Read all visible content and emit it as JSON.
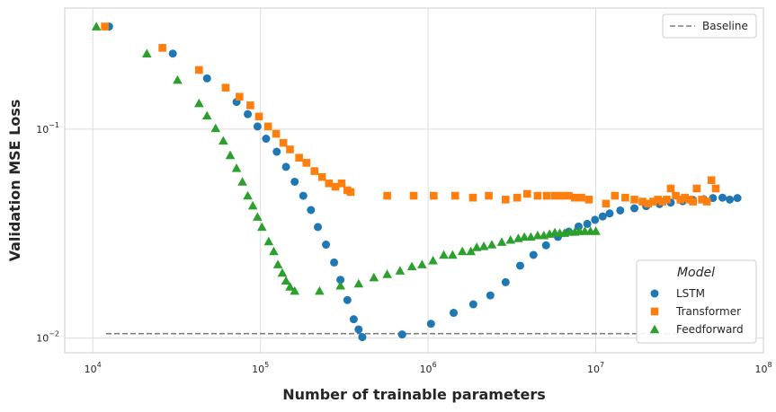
{
  "chart_data": {
    "type": "scatter",
    "title": "",
    "xlabel": "Number of trainable parameters",
    "ylabel": "Validation MSE Loss",
    "xscale": "log",
    "yscale": "log",
    "xlim": [
      6800,
      100000000
    ],
    "ylim": [
      0.0085,
      0.38
    ],
    "x_ticks": [
      {
        "value": 10000,
        "base": "10",
        "exp": "4"
      },
      {
        "value": 100000,
        "base": "10",
        "exp": "5"
      },
      {
        "value": 1000000,
        "base": "10",
        "exp": "6"
      },
      {
        "value": 10000000,
        "base": "10",
        "exp": "7"
      },
      {
        "value": 100000000,
        "base": "10",
        "exp": "8"
      }
    ],
    "y_ticks": [
      {
        "value": 0.01,
        "base": "10",
        "exp": "−2"
      },
      {
        "value": 0.1,
        "base": "10",
        "exp": "−1"
      }
    ],
    "grid": true,
    "legend_title": "Model",
    "legend_position": "bottom-right",
    "baseline": {
      "name": "Baseline",
      "y": 0.0105,
      "x_range": [
        12000,
        50000000
      ],
      "color": "#7f7f7f",
      "legend_position": "top-right"
    },
    "series": [
      {
        "name": "LSTM",
        "marker": "circle",
        "color": "#1f77b4",
        "points": [
          [
            12500,
            0.31
          ],
          [
            30000,
            0.23
          ],
          [
            48000,
            0.175
          ],
          [
            72000,
            0.135
          ],
          [
            84000,
            0.118
          ],
          [
            96000,
            0.103
          ],
          [
            108000,
            0.09
          ],
          [
            125000,
            0.078
          ],
          [
            142000,
            0.066
          ],
          [
            160000,
            0.056
          ],
          [
            180000,
            0.048
          ],
          [
            200000,
            0.041
          ],
          [
            220000,
            0.034
          ],
          [
            246000,
            0.028
          ],
          [
            275000,
            0.023
          ],
          [
            300000,
            0.019
          ],
          [
            330000,
            0.0152
          ],
          [
            360000,
            0.0123
          ],
          [
            385000,
            0.011
          ],
          [
            405000,
            0.0101
          ],
          [
            700000,
            0.0104
          ],
          [
            1040000,
            0.0117
          ],
          [
            1420000,
            0.0132
          ],
          [
            1860000,
            0.0145
          ],
          [
            2350000,
            0.016
          ],
          [
            2900000,
            0.0185
          ],
          [
            3540000,
            0.0222
          ],
          [
            4250000,
            0.025
          ],
          [
            5050000,
            0.0278
          ],
          [
            5950000,
            0.0305
          ],
          [
            6900000,
            0.0323
          ],
          [
            7900000,
            0.0342
          ],
          [
            8900000,
            0.0352
          ],
          [
            9900000,
            0.0368
          ],
          [
            11000000,
            0.0382
          ],
          [
            12100000,
            0.0395
          ],
          [
            14000000,
            0.0408
          ],
          [
            17000000,
            0.0418
          ],
          [
            20000000,
            0.0428
          ],
          [
            24000000,
            0.0438
          ],
          [
            28000000,
            0.0445
          ],
          [
            33000000,
            0.0452
          ],
          [
            38000000,
            0.0458
          ],
          [
            44000000,
            0.0462
          ],
          [
            50000000,
            0.0468
          ],
          [
            57000000,
            0.047
          ],
          [
            63000000,
            0.046
          ],
          [
            70000000,
            0.0468
          ]
        ]
      },
      {
        "name": "Transformer",
        "marker": "square",
        "color": "#ff7f0e",
        "points": [
          [
            11800,
            0.31
          ],
          [
            26000,
            0.245
          ],
          [
            43000,
            0.192
          ],
          [
            62000,
            0.158
          ],
          [
            75000,
            0.143
          ],
          [
            87000,
            0.13
          ],
          [
            98000,
            0.115
          ],
          [
            111000,
            0.103
          ],
          [
            124000,
            0.095
          ],
          [
            137000,
            0.086
          ],
          [
            150000,
            0.08
          ],
          [
            170000,
            0.073
          ],
          [
            188000,
            0.069
          ],
          [
            210000,
            0.063
          ],
          [
            233000,
            0.059
          ],
          [
            256000,
            0.055
          ],
          [
            280000,
            0.053
          ],
          [
            305000,
            0.055
          ],
          [
            330000,
            0.051
          ],
          [
            345000,
            0.05
          ],
          [
            570000,
            0.048
          ],
          [
            820000,
            0.048
          ],
          [
            1080000,
            0.048
          ],
          [
            1450000,
            0.048
          ],
          [
            1850000,
            0.047
          ],
          [
            2300000,
            0.048
          ],
          [
            2900000,
            0.046
          ],
          [
            3400000,
            0.047
          ],
          [
            3900000,
            0.049
          ],
          [
            4500000,
            0.048
          ],
          [
            5100000,
            0.048
          ],
          [
            5700000,
            0.048
          ],
          [
            6300000,
            0.048
          ],
          [
            6900000,
            0.048
          ],
          [
            7500000,
            0.047
          ],
          [
            8200000,
            0.047
          ],
          [
            9100000,
            0.046
          ],
          [
            11500000,
            0.044
          ],
          [
            13000000,
            0.048
          ],
          [
            15000000,
            0.047
          ],
          [
            17000000,
            0.046
          ],
          [
            19000000,
            0.045
          ],
          [
            20500000,
            0.044
          ],
          [
            22000000,
            0.045
          ],
          [
            23500000,
            0.046
          ],
          [
            25000000,
            0.045
          ],
          [
            26500000,
            0.046
          ],
          [
            28000000,
            0.052
          ],
          [
            30000000,
            0.048
          ],
          [
            32000000,
            0.046
          ],
          [
            34000000,
            0.047
          ],
          [
            36000000,
            0.046
          ],
          [
            38000000,
            0.045
          ],
          [
            40000000,
            0.052
          ],
          [
            43000000,
            0.046
          ],
          [
            46000000,
            0.045
          ],
          [
            49000000,
            0.057
          ],
          [
            52000000,
            0.052
          ]
        ]
      },
      {
        "name": "Feedforward",
        "marker": "triangle",
        "color": "#2ca02c",
        "points": [
          [
            10500,
            0.31
          ],
          [
            21000,
            0.23
          ],
          [
            32000,
            0.172
          ],
          [
            43000,
            0.133
          ],
          [
            48000,
            0.116
          ],
          [
            54000,
            0.101
          ],
          [
            60000,
            0.088
          ],
          [
            66000,
            0.075
          ],
          [
            72000,
            0.065
          ],
          [
            78000,
            0.056
          ],
          [
            84000,
            0.048
          ],
          [
            90000,
            0.043
          ],
          [
            96000,
            0.038
          ],
          [
            102000,
            0.034
          ],
          [
            112000,
            0.029
          ],
          [
            120000,
            0.026
          ],
          [
            127000,
            0.0225
          ],
          [
            135000,
            0.0205
          ],
          [
            142000,
            0.0188
          ],
          [
            150000,
            0.0176
          ],
          [
            160000,
            0.0168
          ],
          [
            225000,
            0.0168
          ],
          [
            300000,
            0.0178
          ],
          [
            385000,
            0.0182
          ],
          [
            475000,
            0.0195
          ],
          [
            570000,
            0.0202
          ],
          [
            680000,
            0.021
          ],
          [
            800000,
            0.022
          ],
          [
            920000,
            0.0225
          ],
          [
            1070000,
            0.0235
          ],
          [
            1240000,
            0.025
          ],
          [
            1400000,
            0.025
          ],
          [
            1600000,
            0.026
          ],
          [
            1800000,
            0.026
          ],
          [
            1950000,
            0.0272
          ],
          [
            2150000,
            0.0275
          ],
          [
            2400000,
            0.028
          ],
          [
            2750000,
            0.0288
          ],
          [
            3100000,
            0.0295
          ],
          [
            3450000,
            0.03
          ],
          [
            3750000,
            0.0305
          ],
          [
            4100000,
            0.0305
          ],
          [
            4500000,
            0.031
          ],
          [
            4900000,
            0.031
          ],
          [
            5300000,
            0.0315
          ],
          [
            5700000,
            0.032
          ],
          [
            6100000,
            0.0318
          ],
          [
            6500000,
            0.0318
          ],
          [
            7000000,
            0.0322
          ],
          [
            7500000,
            0.0322
          ],
          [
            8000000,
            0.0325
          ],
          [
            8600000,
            0.0325
          ],
          [
            9300000,
            0.0325
          ],
          [
            10000000,
            0.0325
          ]
        ]
      }
    ]
  }
}
